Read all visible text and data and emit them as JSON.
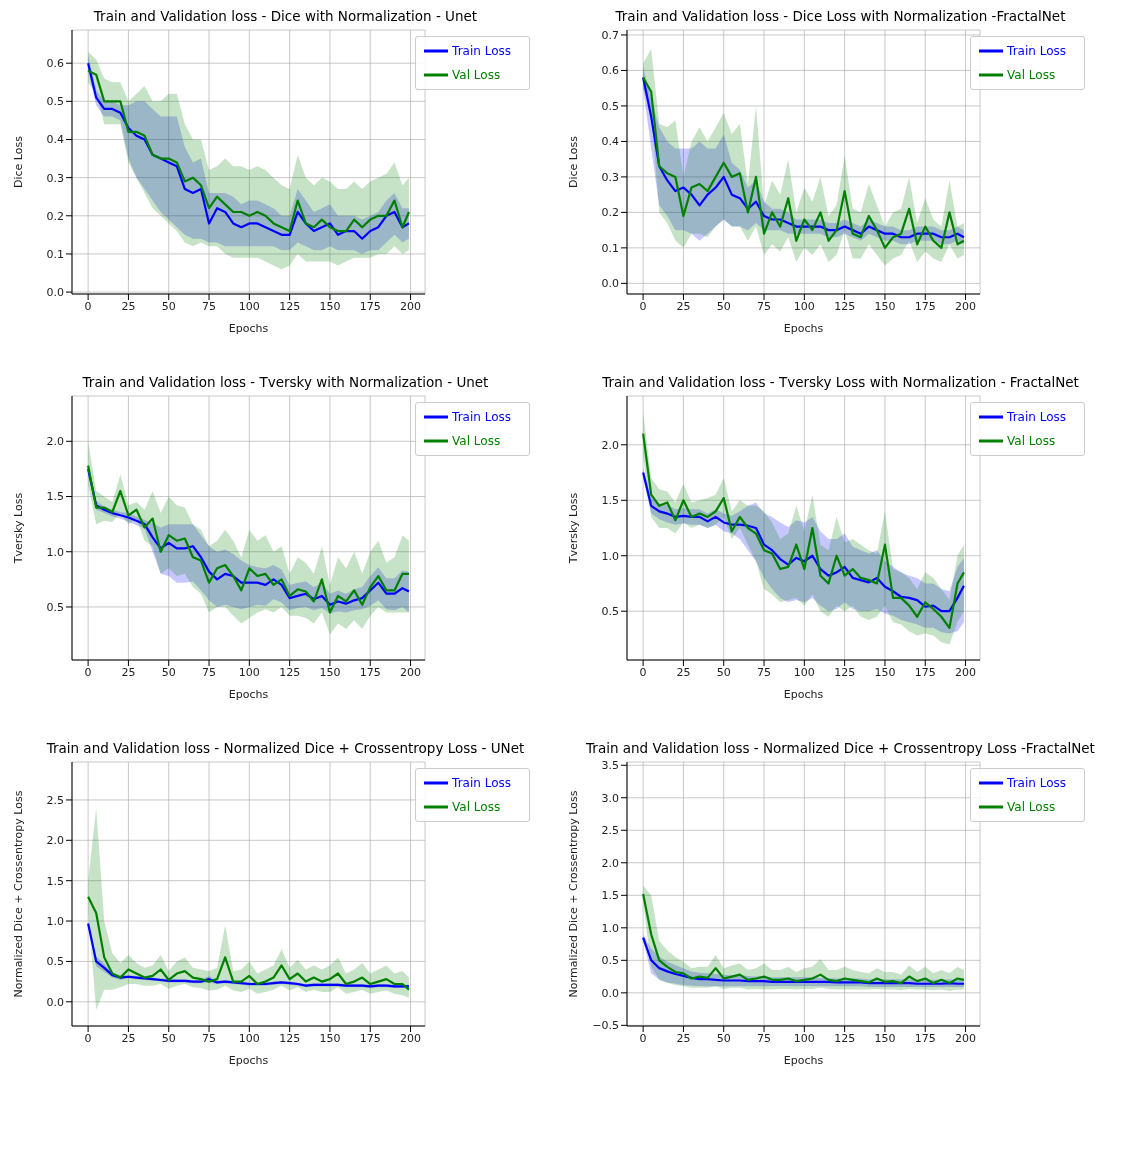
{
  "chart_data": [
    {
      "type": "line",
      "title": "Train and Validation loss - Dice with Normalization - Unet",
      "xlabel": "Epochs",
      "ylabel": "Dice Loss",
      "grid": true,
      "legend": "top right",
      "xlim": [
        -10,
        209
      ],
      "xticks": [
        0,
        25,
        50,
        75,
        100,
        125,
        150,
        175,
        200
      ],
      "ylim": [
        -0.005,
        0.687
      ],
      "yticks": [
        {
          "value": 0,
          "label": "0.0"
        },
        0.1,
        0.2,
        0.3,
        0.4,
        0.5,
        0.6
      ],
      "x": [
        0,
        5,
        10,
        15,
        20,
        25,
        30,
        35,
        40,
        45,
        50,
        55,
        60,
        65,
        70,
        75,
        80,
        85,
        90,
        95,
        100,
        105,
        110,
        115,
        120,
        125,
        130,
        135,
        140,
        145,
        150,
        155,
        160,
        165,
        170,
        175,
        180,
        185,
        190,
        195,
        199
      ],
      "series": [
        {
          "name": "Train Loss",
          "color": "#0000ff",
          "values": [
            0.6,
            0.51,
            0.48,
            0.48,
            0.47,
            0.43,
            0.41,
            0.4,
            0.36,
            0.35,
            0.34,
            0.33,
            0.27,
            0.26,
            0.27,
            0.18,
            0.22,
            0.21,
            0.18,
            0.17,
            0.18,
            0.18,
            0.17,
            0.16,
            0.15,
            0.15,
            0.21,
            0.18,
            0.16,
            0.17,
            0.18,
            0.15,
            0.16,
            0.16,
            0.14,
            0.16,
            0.17,
            0.2,
            0.21,
            0.17,
            0.18
          ],
          "lower": [
            0.58,
            0.49,
            0.46,
            0.46,
            0.45,
            0.35,
            0.3,
            0.27,
            0.24,
            0.21,
            0.19,
            0.17,
            0.15,
            0.14,
            0.14,
            0.13,
            0.13,
            0.12,
            0.12,
            0.12,
            0.12,
            0.12,
            0.12,
            0.12,
            0.11,
            0.11,
            0.13,
            0.12,
            0.11,
            0.11,
            0.12,
            0.11,
            0.11,
            0.11,
            0.1,
            0.11,
            0.11,
            0.13,
            0.15,
            0.13,
            0.14
          ],
          "upper": [
            0.62,
            0.53,
            0.5,
            0.5,
            0.49,
            0.49,
            0.5,
            0.5,
            0.48,
            0.46,
            0.46,
            0.46,
            0.38,
            0.34,
            0.35,
            0.26,
            0.26,
            0.26,
            0.25,
            0.23,
            0.24,
            0.24,
            0.23,
            0.22,
            0.2,
            0.2,
            0.27,
            0.24,
            0.21,
            0.22,
            0.23,
            0.2,
            0.2,
            0.2,
            0.19,
            0.2,
            0.21,
            0.24,
            0.26,
            0.22,
            0.22
          ]
        },
        {
          "name": "Val Loss",
          "color": "#008000",
          "values": [
            0.58,
            0.57,
            0.5,
            0.5,
            0.5,
            0.42,
            0.42,
            0.41,
            0.36,
            0.35,
            0.35,
            0.34,
            0.29,
            0.3,
            0.28,
            0.22,
            0.25,
            0.23,
            0.21,
            0.21,
            0.2,
            0.21,
            0.2,
            0.18,
            0.17,
            0.16,
            0.24,
            0.18,
            0.17,
            0.19,
            0.17,
            0.16,
            0.16,
            0.19,
            0.17,
            0.19,
            0.2,
            0.2,
            0.24,
            0.17,
            0.21
          ],
          "lower": [
            0.55,
            0.52,
            0.44,
            0.44,
            0.44,
            0.34,
            0.3,
            0.26,
            0.22,
            0.2,
            0.18,
            0.16,
            0.13,
            0.12,
            0.13,
            0.12,
            0.12,
            0.1,
            0.09,
            0.09,
            0.09,
            0.09,
            0.08,
            0.07,
            0.06,
            0.07,
            0.1,
            0.08,
            0.08,
            0.08,
            0.08,
            0.07,
            0.08,
            0.09,
            0.09,
            0.09,
            0.1,
            0.1,
            0.12,
            0.1,
            0.11
          ],
          "upper": [
            0.63,
            0.61,
            0.56,
            0.55,
            0.55,
            0.5,
            0.52,
            0.54,
            0.5,
            0.5,
            0.52,
            0.52,
            0.44,
            0.4,
            0.4,
            0.32,
            0.33,
            0.35,
            0.33,
            0.33,
            0.32,
            0.33,
            0.32,
            0.3,
            0.28,
            0.27,
            0.36,
            0.3,
            0.28,
            0.3,
            0.29,
            0.27,
            0.27,
            0.29,
            0.27,
            0.29,
            0.3,
            0.31,
            0.34,
            0.28,
            0.3
          ]
        }
      ]
    },
    {
      "type": "line",
      "title": "Train and Validation loss - Dice Loss with Normalization -FractalNet",
      "xlabel": "Epochs",
      "ylabel": "Dice Loss",
      "grid": true,
      "legend": "top right",
      "xlim": [
        -10,
        209
      ],
      "xticks": [
        0,
        25,
        50,
        75,
        100,
        125,
        150,
        175,
        200
      ],
      "ylim": [
        -0.03,
        0.714
      ],
      "yticks": [
        {
          "value": 0,
          "label": "0.0"
        },
        0.1,
        0.2,
        0.3,
        0.4,
        0.5,
        0.6,
        0.7
      ],
      "x": [
        0,
        5,
        10,
        15,
        20,
        25,
        30,
        35,
        40,
        45,
        50,
        55,
        60,
        65,
        70,
        75,
        80,
        85,
        90,
        95,
        100,
        105,
        110,
        115,
        120,
        125,
        130,
        135,
        140,
        145,
        150,
        155,
        160,
        165,
        170,
        175,
        180,
        185,
        190,
        195,
        199
      ],
      "series": [
        {
          "name": "Train Loss",
          "color": "#0000ff",
          "values": [
            0.58,
            0.47,
            0.33,
            0.29,
            0.26,
            0.27,
            0.25,
            0.22,
            0.25,
            0.27,
            0.3,
            0.25,
            0.24,
            0.21,
            0.23,
            0.19,
            0.18,
            0.18,
            0.17,
            0.16,
            0.16,
            0.16,
            0.16,
            0.15,
            0.15,
            0.16,
            0.15,
            0.14,
            0.16,
            0.15,
            0.14,
            0.14,
            0.13,
            0.13,
            0.14,
            0.14,
            0.14,
            0.13,
            0.13,
            0.14,
            0.13
          ],
          "lower": [
            0.55,
            0.38,
            0.22,
            0.19,
            0.15,
            0.15,
            0.14,
            0.12,
            0.14,
            0.16,
            0.18,
            0.16,
            0.16,
            0.15,
            0.17,
            0.15,
            0.15,
            0.15,
            0.14,
            0.14,
            0.14,
            0.14,
            0.14,
            0.13,
            0.13,
            0.14,
            0.13,
            0.12,
            0.14,
            0.13,
            0.12,
            0.12,
            0.11,
            0.11,
            0.12,
            0.12,
            0.12,
            0.11,
            0.11,
            0.12,
            0.11
          ],
          "upper": [
            0.61,
            0.52,
            0.44,
            0.4,
            0.38,
            0.38,
            0.38,
            0.4,
            0.38,
            0.38,
            0.42,
            0.34,
            0.32,
            0.27,
            0.29,
            0.23,
            0.21,
            0.21,
            0.2,
            0.18,
            0.18,
            0.18,
            0.18,
            0.17,
            0.17,
            0.18,
            0.17,
            0.16,
            0.18,
            0.17,
            0.16,
            0.16,
            0.15,
            0.15,
            0.16,
            0.16,
            0.16,
            0.15,
            0.15,
            0.16,
            0.15
          ]
        },
        {
          "name": "Val Loss",
          "color": "#008000",
          "values": [
            0.58,
            0.54,
            0.33,
            0.31,
            0.3,
            0.19,
            0.27,
            0.28,
            0.26,
            0.3,
            0.34,
            0.3,
            0.31,
            0.2,
            0.3,
            0.14,
            0.2,
            0.16,
            0.24,
            0.12,
            0.18,
            0.15,
            0.2,
            0.12,
            0.15,
            0.26,
            0.14,
            0.13,
            0.19,
            0.15,
            0.1,
            0.13,
            0.14,
            0.21,
            0.11,
            0.16,
            0.12,
            0.1,
            0.2,
            0.11,
            0.12
          ],
          "lower": [
            0.55,
            0.48,
            0.2,
            0.17,
            0.12,
            0.1,
            0.14,
            0.14,
            0.13,
            0.16,
            0.18,
            0.16,
            0.16,
            0.12,
            0.16,
            0.08,
            0.11,
            0.09,
            0.13,
            0.06,
            0.1,
            0.08,
            0.11,
            0.06,
            0.08,
            0.15,
            0.07,
            0.07,
            0.11,
            0.08,
            0.05,
            0.07,
            0.08,
            0.12,
            0.06,
            0.09,
            0.07,
            0.06,
            0.11,
            0.07,
            0.08
          ],
          "upper": [
            0.62,
            0.66,
            0.45,
            0.44,
            0.46,
            0.3,
            0.4,
            0.44,
            0.4,
            0.44,
            0.48,
            0.42,
            0.45,
            0.28,
            0.5,
            0.22,
            0.29,
            0.25,
            0.35,
            0.2,
            0.27,
            0.23,
            0.3,
            0.19,
            0.22,
            0.36,
            0.21,
            0.2,
            0.28,
            0.22,
            0.16,
            0.2,
            0.21,
            0.3,
            0.17,
            0.24,
            0.18,
            0.16,
            0.29,
            0.16,
            0.17
          ]
        }
      ]
    },
    {
      "type": "line",
      "title": "Train and Validation loss - Tversky with Normalization - Unet",
      "xlabel": "Epochs",
      "ylabel": "Tversky Loss",
      "grid": true,
      "legend": "top right",
      "xlim": [
        -10,
        209
      ],
      "xticks": [
        0,
        25,
        50,
        75,
        100,
        125,
        150,
        175,
        200
      ],
      "ylim": [
        0.02,
        2.41
      ],
      "yticks": [
        0.5,
        {
          "value": 1,
          "label": "1.0"
        },
        1.5,
        {
          "value": 2,
          "label": "2.0"
        }
      ],
      "x": [
        0,
        5,
        10,
        15,
        20,
        25,
        30,
        35,
        40,
        45,
        50,
        55,
        60,
        65,
        70,
        75,
        80,
        85,
        90,
        95,
        100,
        105,
        110,
        115,
        120,
        125,
        130,
        135,
        140,
        145,
        150,
        155,
        160,
        165,
        170,
        175,
        180,
        185,
        190,
        195,
        199
      ],
      "series": [
        {
          "name": "Train Loss",
          "color": "#0000ff",
          "values": [
            1.75,
            1.42,
            1.38,
            1.35,
            1.33,
            1.31,
            1.28,
            1.25,
            1.13,
            1.03,
            1.08,
            1.03,
            1.03,
            1.05,
            0.95,
            0.82,
            0.75,
            0.8,
            0.78,
            0.72,
            0.72,
            0.72,
            0.7,
            0.75,
            0.7,
            0.58,
            0.6,
            0.62,
            0.57,
            0.6,
            0.52,
            0.55,
            0.53,
            0.56,
            0.58,
            0.65,
            0.72,
            0.62,
            0.62,
            0.67,
            0.64
          ],
          "lower": [
            1.7,
            1.38,
            1.35,
            1.32,
            1.3,
            1.27,
            1.24,
            1.21,
            1.0,
            0.8,
            0.78,
            0.72,
            0.72,
            0.73,
            0.65,
            0.56,
            0.5,
            0.52,
            0.5,
            0.48,
            0.5,
            0.52,
            0.51,
            0.57,
            0.54,
            0.47,
            0.49,
            0.5,
            0.47,
            0.49,
            0.44,
            0.46,
            0.45,
            0.47,
            0.48,
            0.51,
            0.56,
            0.48,
            0.47,
            0.5,
            0.45
          ],
          "upper": [
            1.8,
            1.46,
            1.41,
            1.38,
            1.36,
            1.35,
            1.32,
            1.29,
            1.26,
            1.22,
            1.25,
            1.25,
            1.25,
            1.25,
            1.15,
            1.05,
            1.0,
            1.02,
            0.98,
            0.92,
            0.88,
            0.86,
            0.85,
            0.88,
            0.84,
            0.7,
            0.72,
            0.73,
            0.68,
            0.72,
            0.62,
            0.65,
            0.62,
            0.66,
            0.68,
            0.78,
            0.86,
            0.76,
            0.76,
            0.83,
            0.82
          ]
        },
        {
          "name": "Val Loss",
          "color": "#008000",
          "values": [
            1.78,
            1.4,
            1.4,
            1.36,
            1.55,
            1.33,
            1.38,
            1.22,
            1.3,
            1.0,
            1.15,
            1.1,
            1.12,
            0.95,
            0.92,
            0.72,
            0.85,
            0.88,
            0.78,
            0.65,
            0.85,
            0.78,
            0.8,
            0.7,
            0.75,
            0.6,
            0.66,
            0.64,
            0.55,
            0.75,
            0.45,
            0.6,
            0.55,
            0.65,
            0.52,
            0.68,
            0.78,
            0.65,
            0.65,
            0.8,
            0.8
          ],
          "lower": [
            1.6,
            1.25,
            1.28,
            1.27,
            1.35,
            1.25,
            1.3,
            1.1,
            1.05,
            0.8,
            0.85,
            0.78,
            0.8,
            0.68,
            0.62,
            0.45,
            0.5,
            0.5,
            0.42,
            0.35,
            0.4,
            0.45,
            0.48,
            0.45,
            0.5,
            0.42,
            0.42,
            0.4,
            0.35,
            0.45,
            0.25,
            0.35,
            0.3,
            0.38,
            0.3,
            0.42,
            0.5,
            0.45,
            0.45,
            0.45,
            0.45
          ],
          "upper": [
            2.0,
            1.55,
            1.5,
            1.45,
            1.7,
            1.42,
            1.45,
            1.38,
            1.55,
            1.35,
            1.5,
            1.42,
            1.4,
            1.25,
            1.2,
            1.05,
            1.1,
            1.2,
            1.1,
            0.95,
            1.2,
            1.1,
            1.15,
            1.0,
            1.05,
            0.8,
            0.95,
            0.9,
            0.8,
            1.05,
            0.7,
            0.95,
            0.85,
            1.0,
            0.8,
            1.0,
            1.1,
            0.9,
            0.95,
            1.15,
            1.1
          ]
        }
      ]
    },
    {
      "type": "line",
      "title": "Train and Validation loss - Tversky Loss with Normalization - FractalNet",
      "xlabel": "Epochs",
      "ylabel": "Tversky Loss",
      "grid": true,
      "legend": "top right",
      "xlim": [
        -10,
        209
      ],
      "xticks": [
        0,
        25,
        50,
        75,
        100,
        125,
        150,
        175,
        200
      ],
      "ylim": [
        0.06,
        2.44
      ],
      "yticks": [
        0.5,
        {
          "value": 1,
          "label": "1.0"
        },
        1.5,
        {
          "value": 2,
          "label": "2.0"
        }
      ],
      "x": [
        0,
        5,
        10,
        15,
        20,
        25,
        30,
        35,
        40,
        45,
        50,
        55,
        60,
        65,
        70,
        75,
        80,
        85,
        90,
        95,
        100,
        105,
        110,
        115,
        120,
        125,
        130,
        135,
        140,
        145,
        150,
        155,
        160,
        165,
        170,
        175,
        180,
        185,
        190,
        195,
        199
      ],
      "series": [
        {
          "name": "Train Loss",
          "color": "#0000ff",
          "values": [
            1.75,
            1.45,
            1.4,
            1.38,
            1.35,
            1.36,
            1.35,
            1.35,
            1.31,
            1.35,
            1.3,
            1.28,
            1.28,
            1.27,
            1.25,
            1.1,
            1.05,
            0.97,
            0.92,
            0.98,
            0.95,
            1.0,
            0.88,
            0.82,
            0.85,
            0.9,
            0.8,
            0.78,
            0.76,
            0.8,
            0.72,
            0.68,
            0.63,
            0.62,
            0.6,
            0.54,
            0.55,
            0.5,
            0.5,
            0.62,
            0.73
          ],
          "lower": [
            1.7,
            1.38,
            1.33,
            1.3,
            1.28,
            1.29,
            1.28,
            1.28,
            1.25,
            1.28,
            1.22,
            1.2,
            1.15,
            1.05,
            0.95,
            0.8,
            0.7,
            0.62,
            0.58,
            0.6,
            0.58,
            0.62,
            0.55,
            0.5,
            0.52,
            0.58,
            0.52,
            0.5,
            0.5,
            0.52,
            0.48,
            0.46,
            0.42,
            0.4,
            0.38,
            0.35,
            0.35,
            0.31,
            0.3,
            0.32,
            0.4
          ],
          "upper": [
            1.8,
            1.52,
            1.47,
            1.46,
            1.42,
            1.43,
            1.42,
            1.42,
            1.38,
            1.42,
            1.38,
            1.36,
            1.4,
            1.45,
            1.48,
            1.38,
            1.35,
            1.3,
            1.26,
            1.32,
            1.3,
            1.35,
            1.22,
            1.15,
            1.15,
            1.2,
            1.08,
            1.05,
            1.02,
            1.05,
            0.95,
            0.9,
            0.85,
            0.82,
            0.8,
            0.75,
            0.75,
            0.7,
            0.68,
            0.9,
            0.98
          ]
        },
        {
          "name": "Val Loss",
          "color": "#008000",
          "values": [
            2.1,
            1.55,
            1.45,
            1.48,
            1.32,
            1.5,
            1.35,
            1.38,
            1.35,
            1.4,
            1.52,
            1.22,
            1.35,
            1.25,
            1.2,
            1.05,
            1.02,
            0.88,
            0.9,
            1.1,
            0.88,
            1.25,
            0.82,
            0.75,
            1.0,
            0.82,
            0.88,
            0.8,
            0.78,
            0.75,
            1.1,
            0.62,
            0.62,
            0.55,
            0.45,
            0.58,
            0.52,
            0.45,
            0.35,
            0.75,
            0.85
          ],
          "lower": [
            1.9,
            1.35,
            1.25,
            1.25,
            1.2,
            1.3,
            1.25,
            1.28,
            1.25,
            1.28,
            1.35,
            1.15,
            1.25,
            1.1,
            0.95,
            0.7,
            0.65,
            0.58,
            0.6,
            0.62,
            0.55,
            0.65,
            0.5,
            0.45,
            0.55,
            0.5,
            0.55,
            0.45,
            0.42,
            0.45,
            0.55,
            0.4,
            0.38,
            0.32,
            0.28,
            0.3,
            0.28,
            0.22,
            0.2,
            0.4,
            0.5
          ],
          "upper": [
            2.3,
            1.7,
            1.6,
            1.58,
            1.48,
            1.65,
            1.48,
            1.5,
            1.52,
            1.55,
            1.7,
            1.4,
            1.5,
            1.45,
            1.45,
            1.4,
            1.3,
            1.15,
            1.2,
            1.45,
            1.22,
            1.55,
            1.1,
            1.05,
            1.35,
            1.12,
            1.15,
            1.1,
            1.05,
            1.02,
            1.4,
            0.88,
            0.85,
            0.8,
            0.7,
            0.85,
            0.8,
            0.7,
            0.6,
            1.0,
            1.1
          ]
        }
      ]
    },
    {
      "type": "line",
      "title": "Train and Validation loss - Normalized Dice + Crossentropy Loss - UNet",
      "xlabel": "Epochs",
      "ylabel": "Normalized Dice + Crossentropy Loss",
      "grid": true,
      "legend": "top right",
      "xlim": [
        -10,
        209
      ],
      "xticks": [
        0,
        25,
        50,
        75,
        100,
        125,
        150,
        175,
        200
      ],
      "ylim": [
        -0.3,
        2.97
      ],
      "yticks": [
        {
          "value": 0,
          "label": "0.0"
        },
        0.5,
        {
          "value": 1,
          "label": "1.0"
        },
        1.5,
        {
          "value": 2,
          "label": "2.0"
        },
        2.5
      ],
      "x": [
        0,
        5,
        10,
        15,
        20,
        25,
        30,
        35,
        40,
        45,
        50,
        55,
        60,
        65,
        70,
        75,
        80,
        85,
        90,
        95,
        100,
        105,
        110,
        115,
        120,
        125,
        130,
        135,
        140,
        145,
        150,
        155,
        160,
        165,
        170,
        175,
        180,
        185,
        190,
        195,
        199
      ],
      "series": [
        {
          "name": "Train Loss",
          "color": "#0000ff",
          "values": [
            0.97,
            0.5,
            0.42,
            0.33,
            0.3,
            0.31,
            0.3,
            0.29,
            0.28,
            0.27,
            0.26,
            0.26,
            0.26,
            0.25,
            0.25,
            0.28,
            0.24,
            0.25,
            0.24,
            0.23,
            0.22,
            0.22,
            0.22,
            0.23,
            0.24,
            0.23,
            0.22,
            0.2,
            0.21,
            0.21,
            0.21,
            0.21,
            0.2,
            0.2,
            0.2,
            0.19,
            0.2,
            0.2,
            0.19,
            0.19,
            0.19
          ],
          "lower": [
            0.95,
            0.44,
            0.37,
            0.3,
            0.27,
            0.29,
            0.28,
            0.27,
            0.26,
            0.25,
            0.24,
            0.24,
            0.24,
            0.23,
            0.23,
            0.24,
            0.22,
            0.23,
            0.22,
            0.21,
            0.2,
            0.2,
            0.2,
            0.21,
            0.22,
            0.21,
            0.2,
            0.18,
            0.19,
            0.19,
            0.19,
            0.19,
            0.18,
            0.18,
            0.18,
            0.17,
            0.18,
            0.18,
            0.17,
            0.17,
            0.17
          ],
          "upper": [
            0.99,
            0.56,
            0.47,
            0.36,
            0.33,
            0.33,
            0.32,
            0.31,
            0.3,
            0.29,
            0.28,
            0.28,
            0.28,
            0.27,
            0.27,
            0.32,
            0.26,
            0.27,
            0.26,
            0.25,
            0.24,
            0.24,
            0.24,
            0.25,
            0.26,
            0.25,
            0.24,
            0.22,
            0.23,
            0.23,
            0.23,
            0.23,
            0.22,
            0.22,
            0.22,
            0.21,
            0.22,
            0.22,
            0.21,
            0.21,
            0.21
          ]
        },
        {
          "name": "Val Loss",
          "color": "#008000",
          "values": [
            1.3,
            1.1,
            0.55,
            0.35,
            0.3,
            0.4,
            0.35,
            0.3,
            0.32,
            0.4,
            0.27,
            0.35,
            0.38,
            0.3,
            0.28,
            0.25,
            0.28,
            0.55,
            0.25,
            0.25,
            0.32,
            0.22,
            0.25,
            0.3,
            0.45,
            0.28,
            0.35,
            0.25,
            0.3,
            0.25,
            0.28,
            0.35,
            0.22,
            0.25,
            0.3,
            0.22,
            0.25,
            0.28,
            0.22,
            0.22,
            0.15
          ],
          "lower": [
            1.1,
            -0.1,
            0.15,
            0.15,
            0.18,
            0.22,
            0.22,
            0.2,
            0.2,
            0.22,
            0.16,
            0.2,
            0.22,
            0.18,
            0.17,
            0.14,
            0.15,
            0.2,
            0.14,
            0.12,
            0.16,
            0.1,
            0.12,
            0.15,
            0.2,
            0.14,
            0.18,
            0.12,
            0.15,
            0.12,
            0.12,
            0.18,
            0.1,
            0.12,
            0.15,
            0.1,
            0.12,
            0.14,
            0.1,
            0.08,
            0.05
          ],
          "upper": [
            1.5,
            2.4,
            1.0,
            0.6,
            0.48,
            0.58,
            0.48,
            0.42,
            0.45,
            0.58,
            0.38,
            0.5,
            0.55,
            0.42,
            0.4,
            0.38,
            0.42,
            0.95,
            0.38,
            0.4,
            0.5,
            0.35,
            0.4,
            0.45,
            0.65,
            0.42,
            0.52,
            0.4,
            0.45,
            0.4,
            0.45,
            0.55,
            0.35,
            0.4,
            0.48,
            0.35,
            0.4,
            0.45,
            0.35,
            0.38,
            0.3
          ]
        }
      ]
    },
    {
      "type": "line",
      "title": "Train and Validation loss - Normalized Dice + Crossentropy Loss -FractalNet",
      "xlabel": "Epochs",
      "ylabel": "Normalized Dice + Crossentropy Loss",
      "grid": true,
      "legend": "top right",
      "xlim": [
        -10,
        209
      ],
      "xticks": [
        0,
        25,
        50,
        75,
        100,
        125,
        150,
        175,
        200
      ],
      "ylim": [
        -0.51,
        3.55
      ],
      "yticks": [
        {
          "value": -0.5,
          "label": "−0.5"
        },
        {
          "value": 0,
          "label": "0.0"
        },
        0.5,
        {
          "value": 1,
          "label": "1.0"
        },
        1.5,
        {
          "value": 2,
          "label": "2.0"
        },
        2.5,
        {
          "value": 3,
          "label": "3.0"
        },
        3.5
      ],
      "x": [
        0,
        5,
        10,
        15,
        20,
        25,
        30,
        35,
        40,
        45,
        50,
        55,
        60,
        65,
        70,
        75,
        80,
        85,
        90,
        95,
        100,
        105,
        110,
        115,
        120,
        125,
        130,
        135,
        140,
        145,
        150,
        155,
        160,
        165,
        170,
        175,
        180,
        185,
        190,
        195,
        199
      ],
      "series": [
        {
          "name": "Train Loss",
          "color": "#0000ff",
          "values": [
            0.85,
            0.5,
            0.38,
            0.33,
            0.29,
            0.26,
            0.23,
            0.21,
            0.21,
            0.2,
            0.19,
            0.19,
            0.19,
            0.18,
            0.18,
            0.18,
            0.17,
            0.17,
            0.17,
            0.17,
            0.17,
            0.17,
            0.17,
            0.17,
            0.16,
            0.16,
            0.16,
            0.16,
            0.15,
            0.15,
            0.15,
            0.15,
            0.15,
            0.15,
            0.14,
            0.14,
            0.14,
            0.14,
            0.15,
            0.14,
            0.14
          ],
          "lower": [
            0.8,
            0.3,
            0.2,
            0.16,
            0.14,
            0.12,
            0.11,
            0.1,
            0.1,
            0.1,
            0.1,
            0.1,
            0.1,
            0.1,
            0.1,
            0.1,
            0.1,
            0.1,
            0.1,
            0.1,
            0.1,
            0.1,
            0.1,
            0.1,
            0.1,
            0.1,
            0.1,
            0.1,
            0.09,
            0.09,
            0.09,
            0.09,
            0.09,
            0.09,
            0.09,
            0.09,
            0.09,
            0.09,
            0.09,
            0.09,
            0.09
          ],
          "upper": [
            0.9,
            0.68,
            0.56,
            0.48,
            0.43,
            0.38,
            0.33,
            0.31,
            0.3,
            0.29,
            0.28,
            0.27,
            0.27,
            0.26,
            0.25,
            0.25,
            0.24,
            0.24,
            0.24,
            0.24,
            0.24,
            0.24,
            0.23,
            0.23,
            0.22,
            0.22,
            0.22,
            0.22,
            0.21,
            0.21,
            0.21,
            0.21,
            0.21,
            0.21,
            0.2,
            0.2,
            0.2,
            0.2,
            0.21,
            0.2,
            0.2
          ]
        },
        {
          "name": "Val Loss",
          "color": "#008000",
          "values": [
            1.52,
            0.9,
            0.5,
            0.4,
            0.32,
            0.3,
            0.22,
            0.25,
            0.23,
            0.38,
            0.22,
            0.25,
            0.28,
            0.2,
            0.22,
            0.25,
            0.2,
            0.2,
            0.22,
            0.18,
            0.2,
            0.22,
            0.28,
            0.2,
            0.18,
            0.22,
            0.2,
            0.18,
            0.16,
            0.22,
            0.17,
            0.18,
            0.15,
            0.25,
            0.18,
            0.22,
            0.15,
            0.2,
            0.15,
            0.22,
            0.2
          ],
          "lower": [
            1.4,
            0.4,
            0.2,
            0.15,
            0.12,
            0.1,
            0.08,
            0.08,
            0.08,
            0.1,
            0.06,
            0.08,
            0.08,
            0.05,
            0.06,
            0.05,
            0.05,
            0.06,
            0.06,
            0.05,
            0.06,
            0.06,
            0.08,
            0.06,
            0.05,
            0.05,
            0.05,
            0.05,
            0.05,
            0.06,
            0.05,
            0.05,
            0.04,
            0.06,
            0.05,
            0.05,
            0.04,
            0.05,
            0.03,
            0.05,
            0.05
          ],
          "upper": [
            1.65,
            1.5,
            0.8,
            0.65,
            0.55,
            0.48,
            0.38,
            0.4,
            0.4,
            0.58,
            0.38,
            0.42,
            0.45,
            0.35,
            0.38,
            0.45,
            0.35,
            0.35,
            0.4,
            0.32,
            0.38,
            0.4,
            0.52,
            0.35,
            0.35,
            0.4,
            0.35,
            0.32,
            0.3,
            0.38,
            0.32,
            0.32,
            0.28,
            0.42,
            0.32,
            0.4,
            0.3,
            0.35,
            0.3,
            0.4,
            0.35
          ]
        }
      ]
    }
  ]
}
